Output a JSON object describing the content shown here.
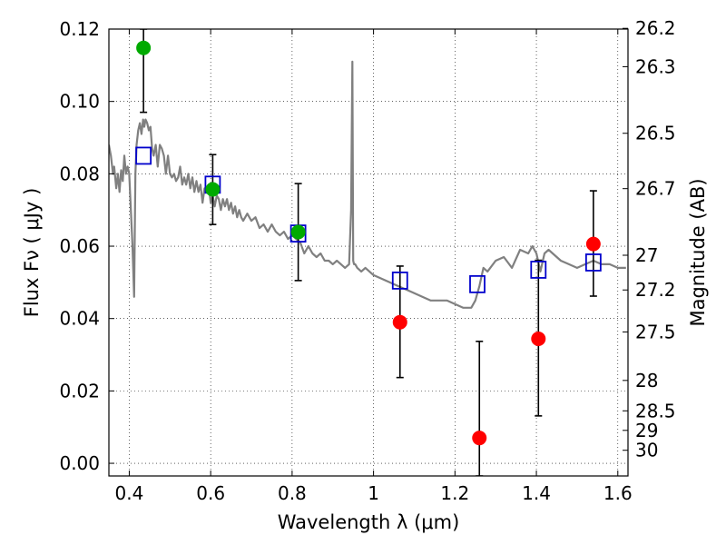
{
  "chart_data": {
    "type": "scatter",
    "xlabel": "Wavelength  λ (μm)",
    "ylabel": "Flux  Fν  ( μJy )",
    "y2label": "Magnitude (AB)",
    "xlim": [
      0.35,
      1.625
    ],
    "ylim": [
      -0.0035,
      0.12
    ],
    "grid": true,
    "x_ticks": [
      0.4,
      0.6,
      0.8,
      1.0,
      1.2,
      1.4,
      1.6
    ],
    "x_tick_labels": [
      "0.4",
      "0.6",
      "0.8",
      "1",
      "1.2",
      "1.4",
      "1.6"
    ],
    "y_ticks": [
      0.0,
      0.02,
      0.04,
      0.06,
      0.08,
      0.1,
      0.12
    ],
    "y_tick_labels": [
      "0.00",
      "0.02",
      "0.04",
      "0.06",
      "0.08",
      "0.10",
      "0.12"
    ],
    "mag_ticks": [
      {
        "label": "26.2",
        "flux": 0.1202
      },
      {
        "label": "26.3",
        "flux": 0.1096
      },
      {
        "label": "26.5",
        "flux": 0.0912
      },
      {
        "label": "26.7",
        "flux": 0.0759
      },
      {
        "label": "27",
        "flux": 0.0575
      },
      {
        "label": "27.2",
        "flux": 0.0479
      },
      {
        "label": "27.5",
        "flux": 0.0363
      },
      {
        "label": "28",
        "flux": 0.0229
      },
      {
        "label": "28.5",
        "flux": 0.0145
      },
      {
        "label": "29",
        "flux": 0.0091
      },
      {
        "label": "30",
        "flux": 0.0036
      }
    ],
    "series": [
      {
        "name": "model_spectrum",
        "kind": "line",
        "color": "#808080",
        "x": [
          0.35,
          0.355,
          0.36,
          0.363,
          0.368,
          0.372,
          0.376,
          0.38,
          0.384,
          0.388,
          0.392,
          0.396,
          0.4,
          0.404,
          0.408,
          0.412,
          0.415,
          0.418,
          0.422,
          0.426,
          0.43,
          0.434,
          0.437,
          0.44,
          0.444,
          0.448,
          0.452,
          0.456,
          0.46,
          0.465,
          0.47,
          0.475,
          0.48,
          0.485,
          0.49,
          0.495,
          0.5,
          0.505,
          0.51,
          0.515,
          0.52,
          0.525,
          0.53,
          0.535,
          0.54,
          0.545,
          0.55,
          0.555,
          0.56,
          0.565,
          0.57,
          0.575,
          0.58,
          0.585,
          0.59,
          0.595,
          0.6,
          0.605,
          0.61,
          0.615,
          0.62,
          0.625,
          0.63,
          0.635,
          0.64,
          0.645,
          0.65,
          0.655,
          0.66,
          0.665,
          0.67,
          0.675,
          0.68,
          0.69,
          0.7,
          0.71,
          0.72,
          0.73,
          0.74,
          0.75,
          0.76,
          0.77,
          0.78,
          0.79,
          0.8,
          0.81,
          0.82,
          0.83,
          0.84,
          0.85,
          0.86,
          0.87,
          0.88,
          0.89,
          0.9,
          0.91,
          0.92,
          0.93,
          0.94,
          0.945,
          0.948,
          0.95,
          0.952,
          0.955,
          0.96,
          0.97,
          0.98,
          0.99,
          1.0,
          1.02,
          1.04,
          1.06,
          1.08,
          1.1,
          1.12,
          1.14,
          1.16,
          1.18,
          1.2,
          1.22,
          1.24,
          1.25,
          1.26,
          1.27,
          1.28,
          1.3,
          1.32,
          1.34,
          1.36,
          1.38,
          1.39,
          1.4,
          1.41,
          1.42,
          1.43,
          1.44,
          1.46,
          1.48,
          1.5,
          1.52,
          1.54,
          1.56,
          1.58,
          1.6,
          1.62
        ],
        "y": [
          0.088,
          0.085,
          0.08,
          0.082,
          0.076,
          0.08,
          0.075,
          0.081,
          0.078,
          0.085,
          0.08,
          0.082,
          0.08,
          0.07,
          0.06,
          0.046,
          0.08,
          0.088,
          0.092,
          0.094,
          0.091,
          0.095,
          0.093,
          0.095,
          0.094,
          0.092,
          0.093,
          0.087,
          0.085,
          0.088,
          0.082,
          0.088,
          0.087,
          0.085,
          0.08,
          0.085,
          0.08,
          0.079,
          0.08,
          0.078,
          0.079,
          0.082,
          0.077,
          0.079,
          0.077,
          0.08,
          0.076,
          0.079,
          0.075,
          0.078,
          0.075,
          0.077,
          0.072,
          0.076,
          0.075,
          0.077,
          0.072,
          0.074,
          0.071,
          0.074,
          0.073,
          0.07,
          0.073,
          0.071,
          0.073,
          0.07,
          0.072,
          0.069,
          0.071,
          0.068,
          0.07,
          0.068,
          0.067,
          0.069,
          0.067,
          0.068,
          0.065,
          0.066,
          0.064,
          0.066,
          0.064,
          0.063,
          0.064,
          0.062,
          0.063,
          0.062,
          0.061,
          0.058,
          0.06,
          0.058,
          0.057,
          0.058,
          0.056,
          0.056,
          0.055,
          0.056,
          0.055,
          0.054,
          0.055,
          0.07,
          0.111,
          0.056,
          0.055,
          0.055,
          0.054,
          0.053,
          0.054,
          0.053,
          0.052,
          0.051,
          0.05,
          0.049,
          0.048,
          0.047,
          0.046,
          0.045,
          0.045,
          0.045,
          0.044,
          0.043,
          0.043,
          0.045,
          0.049,
          0.054,
          0.053,
          0.056,
          0.057,
          0.054,
          0.059,
          0.058,
          0.06,
          0.058,
          0.053,
          0.058,
          0.059,
          0.058,
          0.056,
          0.055,
          0.054,
          0.055,
          0.056,
          0.055,
          0.055,
          0.054,
          0.054
        ]
      },
      {
        "name": "model_photometry",
        "kind": "open_square",
        "color": "#0000cc",
        "x": [
          0.435,
          0.605,
          0.815,
          1.065,
          1.255,
          1.405,
          1.54
        ],
        "y": [
          0.085,
          0.077,
          0.0635,
          0.0505,
          0.0495,
          0.0535,
          0.0555
        ]
      },
      {
        "name": "detections",
        "kind": "filled_circle",
        "color": "#00aa00",
        "x": [
          0.435,
          0.605,
          0.815
        ],
        "y": [
          0.1148,
          0.0757,
          0.0639
        ],
        "yerr_low": [
          0.097,
          0.066,
          0.0505
        ],
        "yerr_high": [
          0.12,
          0.0853,
          0.0773
        ]
      },
      {
        "name": "non_detections",
        "kind": "filled_circle",
        "color": "#ff0000",
        "x": [
          1.065,
          1.26,
          1.405,
          1.54
        ],
        "y": [
          0.039,
          0.007,
          0.0344,
          0.0606
        ],
        "yerr_low": [
          0.0237,
          -0.0035,
          0.0131,
          0.0462
        ],
        "yerr_high": [
          0.0545,
          0.0337,
          0.0561,
          0.0753
        ]
      }
    ]
  }
}
